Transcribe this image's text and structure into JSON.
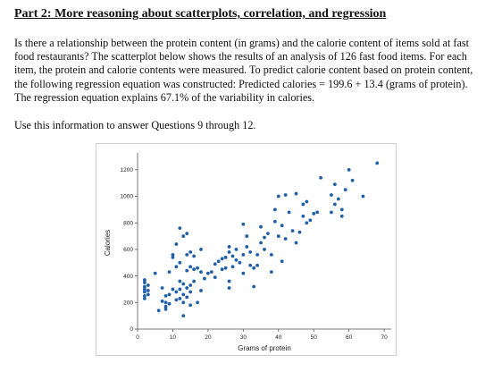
{
  "document": {
    "heading": "Part 2: More reasoning about scatterplots, correlation, and regression",
    "paragraph_lines": [
      "Is there a relationship between the protein content (in grams) and the calorie content of items sold at fast",
      "food restaurants? The scatterplot below shows the results of an analysis of 126 fast food items. For each",
      "item, the protein and calorie contents were measured. To predict calorie content based on protein content,",
      "the following regression equation was constructed: Predicted calories = 199.6 + 13.4 (grams of protein).",
      "The regression equation explains 67.1% of the variability in calories."
    ],
    "instruction": "Use this information to answer Questions 9 through 12."
  },
  "chart_data": {
    "type": "scatter",
    "xlabel": "Grams of protein",
    "ylabel": "Calories",
    "xlim": [
      0,
      72
    ],
    "ylim": [
      0,
      1300
    ],
    "x_ticks": [
      0,
      10,
      20,
      30,
      40,
      50,
      60,
      70
    ],
    "y_ticks": [
      0,
      200,
      400,
      600,
      800,
      1000,
      1200
    ],
    "grid": false,
    "marker_color": "#1f5fa8",
    "series": [
      {
        "points": [
          [
            2,
            230
          ],
          [
            2,
            250
          ],
          [
            2,
            280
          ],
          [
            2,
            300
          ],
          [
            2,
            320
          ],
          [
            2,
            350
          ],
          [
            2,
            370
          ],
          [
            3,
            260
          ],
          [
            3,
            290
          ],
          [
            3,
            330
          ],
          [
            5,
            420
          ],
          [
            6,
            140
          ],
          [
            7,
            210
          ],
          [
            7,
            310
          ],
          [
            8,
            150
          ],
          [
            8,
            170
          ],
          [
            8,
            200
          ],
          [
            8,
            250
          ],
          [
            9,
            190
          ],
          [
            9,
            260
          ],
          [
            9,
            430
          ],
          [
            10,
            300
          ],
          [
            10,
            540
          ],
          [
            10,
            560
          ],
          [
            11,
            220
          ],
          [
            11,
            280
          ],
          [
            11,
            470
          ],
          [
            11,
            640
          ],
          [
            12,
            230
          ],
          [
            12,
            300
          ],
          [
            12,
            360
          ],
          [
            12,
            500
          ],
          [
            12,
            760
          ],
          [
            13,
            100
          ],
          [
            13,
            200
          ],
          [
            13,
            260
          ],
          [
            13,
            340
          ],
          [
            13,
            700
          ],
          [
            14,
            240
          ],
          [
            14,
            310
          ],
          [
            14,
            440
          ],
          [
            14,
            560
          ],
          [
            14,
            720
          ],
          [
            15,
            180
          ],
          [
            15,
            280
          ],
          [
            15,
            330
          ],
          [
            15,
            470
          ],
          [
            15,
            580
          ],
          [
            16,
            360
          ],
          [
            16,
            450
          ],
          [
            16,
            550
          ],
          [
            17,
            200
          ],
          [
            17,
            460
          ],
          [
            18,
            290
          ],
          [
            18,
            430
          ],
          [
            18,
            600
          ],
          [
            19,
            380
          ],
          [
            20,
            420
          ],
          [
            21,
            430
          ],
          [
            22,
            390
          ],
          [
            22,
            490
          ],
          [
            23,
            510
          ],
          [
            24,
            450
          ],
          [
            24,
            530
          ],
          [
            25,
            460
          ],
          [
            25,
            540
          ],
          [
            26,
            310
          ],
          [
            26,
            360
          ],
          [
            26,
            580
          ],
          [
            26,
            620
          ],
          [
            27,
            470
          ],
          [
            27,
            550
          ],
          [
            28,
            520
          ],
          [
            28,
            600
          ],
          [
            29,
            500
          ],
          [
            30,
            420
          ],
          [
            30,
            560
          ],
          [
            30,
            790
          ],
          [
            31,
            620
          ],
          [
            31,
            700
          ],
          [
            32,
            480
          ],
          [
            32,
            580
          ],
          [
            33,
            320
          ],
          [
            33,
            460
          ],
          [
            34,
            480
          ],
          [
            34,
            560
          ],
          [
            35,
            650
          ],
          [
            35,
            770
          ],
          [
            36,
            600
          ],
          [
            36,
            690
          ],
          [
            37,
            720
          ],
          [
            38,
            430
          ],
          [
            38,
            560
          ],
          [
            39,
            810
          ],
          [
            39,
            900
          ],
          [
            40,
            1000
          ],
          [
            40,
            700
          ],
          [
            41,
            780
          ],
          [
            41,
            510
          ],
          [
            42,
            680
          ],
          [
            42,
            1010
          ],
          [
            43,
            880
          ],
          [
            44,
            740
          ],
          [
            45,
            650
          ],
          [
            45,
            1020
          ],
          [
            46,
            730
          ],
          [
            47,
            940
          ],
          [
            47,
            850
          ],
          [
            48,
            800
          ],
          [
            48,
            960
          ],
          [
            49,
            820
          ],
          [
            50,
            870
          ],
          [
            51,
            880
          ],
          [
            52,
            1140
          ],
          [
            55,
            1010
          ],
          [
            55,
            880
          ],
          [
            56,
            940
          ],
          [
            56,
            1090
          ],
          [
            57,
            980
          ],
          [
            58,
            900
          ],
          [
            58,
            850
          ],
          [
            59,
            1050
          ],
          [
            60,
            1200
          ],
          [
            61,
            1120
          ],
          [
            64,
            1000
          ],
          [
            68,
            1250
          ]
        ]
      }
    ]
  }
}
